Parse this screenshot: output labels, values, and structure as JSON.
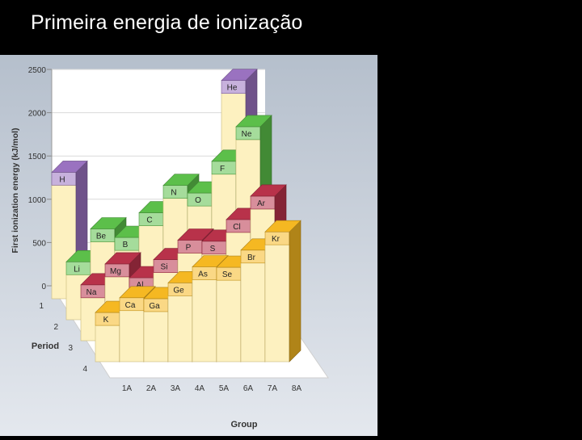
{
  "slide": {
    "title": "Primeira energia de ionização"
  },
  "chart_data": {
    "type": "bar",
    "subtype": "3d-grouped-bar",
    "title": "",
    "ylabel": "First ionization energy (kJ/mol)",
    "xlabel": "Group",
    "depth_label": "Period",
    "ylim": [
      0,
      2500
    ],
    "yticks": [
      0,
      500,
      1000,
      1500,
      2000,
      2500
    ],
    "groups": [
      "1A",
      "2A",
      "3A",
      "4A",
      "5A",
      "6A",
      "7A",
      "8A"
    ],
    "periods": [
      "1",
      "2",
      "3",
      "4"
    ],
    "elements": [
      {
        "symbol": "H",
        "period": 1,
        "group": "1A",
        "value": 1312,
        "color": "#9a72c0"
      },
      {
        "symbol": "He",
        "period": 1,
        "group": "8A",
        "value": 2372,
        "color": "#9a72c0"
      },
      {
        "symbol": "Li",
        "period": 2,
        "group": "1A",
        "value": 520,
        "color": "#5cbf4a"
      },
      {
        "symbol": "Be",
        "period": 2,
        "group": "2A",
        "value": 900,
        "color": "#5cbf4a"
      },
      {
        "symbol": "B",
        "period": 2,
        "group": "3A",
        "value": 801,
        "color": "#5cbf4a"
      },
      {
        "symbol": "C",
        "period": 2,
        "group": "4A",
        "value": 1086,
        "color": "#5cbf4a"
      },
      {
        "symbol": "N",
        "period": 2,
        "group": "5A",
        "value": 1402,
        "color": "#5cbf4a"
      },
      {
        "symbol": "O",
        "period": 2,
        "group": "6A",
        "value": 1314,
        "color": "#5cbf4a"
      },
      {
        "symbol": "F",
        "period": 2,
        "group": "7A",
        "value": 1681,
        "color": "#5cbf4a"
      },
      {
        "symbol": "Ne",
        "period": 2,
        "group": "8A",
        "value": 2081,
        "color": "#5cbf4a"
      },
      {
        "symbol": "Na",
        "period": 3,
        "group": "1A",
        "value": 496,
        "color": "#b8324a"
      },
      {
        "symbol": "Mg",
        "period": 3,
        "group": "2A",
        "value": 738,
        "color": "#b8324a"
      },
      {
        "symbol": "Al",
        "period": 3,
        "group": "3A",
        "value": 578,
        "color": "#b8324a"
      },
      {
        "symbol": "Si",
        "period": 3,
        "group": "4A",
        "value": 787,
        "color": "#b8324a"
      },
      {
        "symbol": "P",
        "period": 3,
        "group": "5A",
        "value": 1012,
        "color": "#b8324a"
      },
      {
        "symbol": "S",
        "period": 3,
        "group": "6A",
        "value": 1000,
        "color": "#b8324a"
      },
      {
        "symbol": "Cl",
        "period": 3,
        "group": "7A",
        "value": 1251,
        "color": "#b8324a"
      },
      {
        "symbol": "Ar",
        "period": 3,
        "group": "8A",
        "value": 1521,
        "color": "#b8324a"
      },
      {
        "symbol": "K",
        "period": 4,
        "group": "1A",
        "value": 419,
        "color": "#f5b822"
      },
      {
        "symbol": "Ca",
        "period": 4,
        "group": "2A",
        "value": 590,
        "color": "#f5b822"
      },
      {
        "symbol": "Ga",
        "period": 4,
        "group": "3A",
        "value": 579,
        "color": "#f5b822"
      },
      {
        "symbol": "Ge",
        "period": 4,
        "group": "4A",
        "value": 762,
        "color": "#f5b822"
      },
      {
        "symbol": "As",
        "period": 4,
        "group": "5A",
        "value": 947,
        "color": "#f5b822"
      },
      {
        "symbol": "Se",
        "period": 4,
        "group": "6A",
        "value": 941,
        "color": "#f5b822"
      },
      {
        "symbol": "Br",
        "period": 4,
        "group": "7A",
        "value": 1140,
        "color": "#f5b822"
      },
      {
        "symbol": "Kr",
        "period": 4,
        "group": "8A",
        "value": 1351,
        "color": "#f5b822"
      }
    ],
    "colors": {
      "panel_top": "#b5bfcc",
      "panel_bottom": "#e4e8ee",
      "grid": "#d9d9d9",
      "front_face": "#fdf1c0",
      "axis_text": "#333333"
    }
  }
}
